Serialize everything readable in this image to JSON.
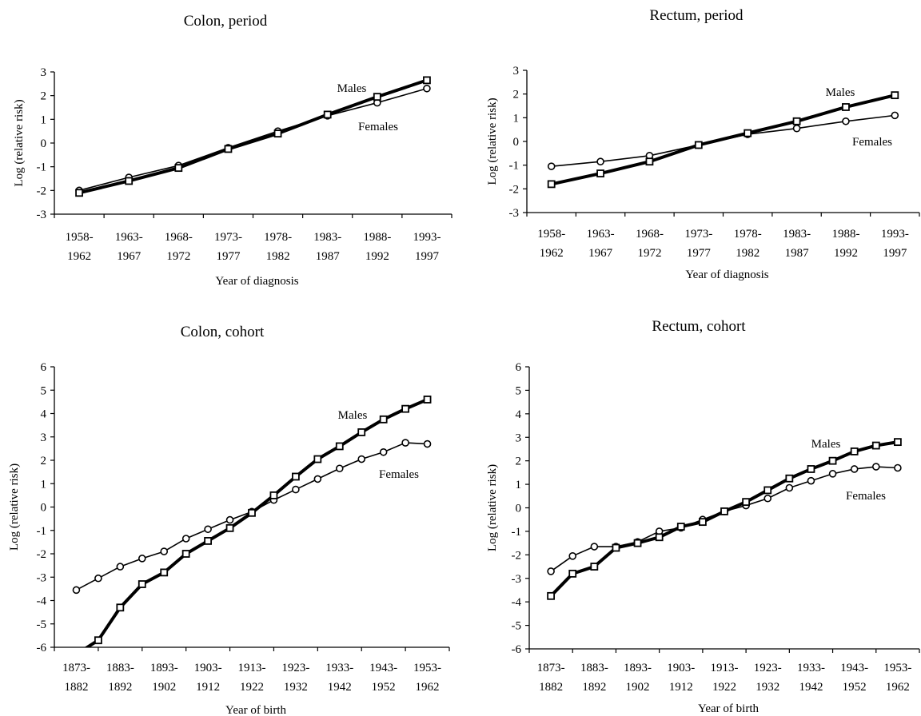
{
  "chart_data": [
    {
      "id": "colon-period",
      "type": "line",
      "title": "Colon, period",
      "xlabel": "Year of diagnosis",
      "ylabel": "Log (relative risk)",
      "ylim": [
        -3,
        3
      ],
      "yticks": [
        "3",
        "2",
        "1",
        "0",
        "-1",
        "-2",
        "-3"
      ],
      "categories": [
        [
          "1958-",
          "1962"
        ],
        [
          "1963-",
          "1967"
        ],
        [
          "1968-",
          "1972"
        ],
        [
          "1973-",
          "1977"
        ],
        [
          "1978-",
          "1982"
        ],
        [
          "1983-",
          "1987"
        ],
        [
          "1988-",
          "1992"
        ],
        [
          "1993-",
          "1997"
        ]
      ],
      "series": [
        {
          "name": "Males",
          "marker": "square",
          "values": [
            -2.1,
            -1.6,
            -1.05,
            -0.25,
            0.4,
            1.2,
            1.95,
            2.65
          ]
        },
        {
          "name": "Females",
          "marker": "circle",
          "values": [
            -2.0,
            -1.45,
            -0.95,
            -0.2,
            0.5,
            1.15,
            1.7,
            2.3
          ]
        }
      ],
      "grid": false
    },
    {
      "id": "rectum-period",
      "type": "line",
      "title": "Rectum, period",
      "xlabel": "Year of diagnosis",
      "ylabel": "Log (relative risk)",
      "ylim": [
        -3,
        3
      ],
      "yticks": [
        "3",
        "2",
        "1",
        "0",
        "-1",
        "-2",
        "-3"
      ],
      "categories": [
        [
          "1958-",
          "1962"
        ],
        [
          "1963-",
          "1967"
        ],
        [
          "1968-",
          "1972"
        ],
        [
          "1973-",
          "1977"
        ],
        [
          "1978-",
          "1982"
        ],
        [
          "1983-",
          "1987"
        ],
        [
          "1988-",
          "1992"
        ],
        [
          "1993-",
          "1997"
        ]
      ],
      "series": [
        {
          "name": "Males",
          "marker": "square",
          "values": [
            -1.8,
            -1.35,
            -0.85,
            -0.15,
            0.35,
            0.85,
            1.45,
            1.95
          ]
        },
        {
          "name": "Females",
          "marker": "circle",
          "values": [
            -1.05,
            -0.85,
            -0.6,
            -0.15,
            0.3,
            0.55,
            0.85,
            1.1
          ]
        }
      ],
      "grid": false
    },
    {
      "id": "colon-cohort",
      "type": "line",
      "title": "Colon, cohort",
      "xlabel": "Year of birth",
      "ylabel": "Log (relative risk)",
      "ylim": [
        -6,
        6
      ],
      "yticks": [
        "6",
        "5",
        "4",
        "3",
        "2",
        "1",
        "0",
        "-1",
        "-2",
        "-3",
        "-4",
        "-5",
        "-6"
      ],
      "categories": [
        [
          "1873-",
          "1882"
        ],
        [
          "1883-",
          "1892"
        ],
        [
          "1893-",
          "1902"
        ],
        [
          "1903-",
          "1912"
        ],
        [
          "1913-",
          "1922"
        ],
        [
          "1923-",
          "1932"
        ],
        [
          "1933-",
          "1942"
        ],
        [
          "1943-",
          "1952"
        ],
        [
          "1953-",
          "1962"
        ]
      ],
      "x": [
        1,
        1.5,
        2,
        2.5,
        3,
        3.5,
        4,
        4.5,
        5,
        5.5,
        6,
        6.5,
        7,
        7.5,
        8,
        8.5,
        9
      ],
      "series": [
        {
          "name": "Males",
          "marker": "square",
          "values": [
            -6.3,
            -5.7,
            -4.3,
            -3.3,
            -2.8,
            -2.0,
            -1.45,
            -0.9,
            -0.25,
            0.5,
            1.3,
            2.05,
            2.6,
            3.2,
            3.75,
            4.2,
            4.6
          ]
        },
        {
          "name": "Females",
          "marker": "circle",
          "values": [
            -3.55,
            -3.05,
            -2.55,
            -2.2,
            -1.9,
            -1.35,
            -0.95,
            -0.55,
            -0.2,
            0.3,
            0.75,
            1.2,
            1.65,
            2.05,
            2.35,
            2.75,
            2.7
          ]
        }
      ],
      "grid": false
    },
    {
      "id": "rectum-cohort",
      "type": "line",
      "title": "Rectum, cohort",
      "xlabel": "Year of birth",
      "ylabel": "Log (relative risk)",
      "ylim": [
        -6,
        6
      ],
      "yticks": [
        "6",
        "5",
        "4",
        "3",
        "2",
        "1",
        "0",
        "-1",
        "-2",
        "-3",
        "-4",
        "-5",
        "-6"
      ],
      "categories": [
        [
          "1873-",
          "1882"
        ],
        [
          "1883-",
          "1892"
        ],
        [
          "1893-",
          "1902"
        ],
        [
          "1903-",
          "1912"
        ],
        [
          "1913-",
          "1922"
        ],
        [
          "1923-",
          "1932"
        ],
        [
          "1933-",
          "1942"
        ],
        [
          "1943-",
          "1952"
        ],
        [
          "1953-",
          "1962"
        ]
      ],
      "x": [
        1,
        1.5,
        2,
        2.5,
        3,
        3.5,
        4,
        4.5,
        5,
        5.5,
        6,
        6.5,
        7,
        7.5,
        8,
        8.5,
        9
      ],
      "series": [
        {
          "name": "Males",
          "marker": "square",
          "values": [
            -3.75,
            -2.8,
            -2.5,
            -1.7,
            -1.5,
            -1.25,
            -0.8,
            -0.6,
            -0.15,
            0.25,
            0.75,
            1.25,
            1.65,
            2.0,
            2.4,
            2.65,
            2.8
          ]
        },
        {
          "name": "Females",
          "marker": "circle",
          "values": [
            -2.7,
            -2.05,
            -1.65,
            -1.65,
            -1.45,
            -1.0,
            -0.85,
            -0.5,
            -0.15,
            0.1,
            0.4,
            0.85,
            1.15,
            1.45,
            1.65,
            1.75,
            1.7
          ]
        }
      ],
      "grid": false
    }
  ]
}
